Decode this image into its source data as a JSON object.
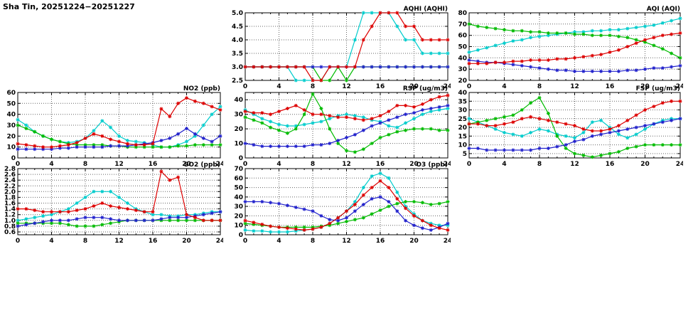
{
  "page": {
    "title": "Sha Tin, 20251224−20251227"
  },
  "x_axis": {
    "min": 0,
    "max": 24,
    "minor_step": 1,
    "major_ticks": [
      0,
      4,
      8,
      12,
      16,
      20,
      24
    ],
    "tick_labels": [
      "0",
      "4",
      "8",
      "12",
      "16",
      "20",
      "24"
    ]
  },
  "chart_data": [
    {
      "id": "aqhi",
      "type": "line",
      "title": "AQHI (AQHI)",
      "ylim": [
        2.5,
        5.0
      ],
      "yticks": [
        2.5,
        3.0,
        3.5,
        4.0,
        4.5,
        5.0
      ],
      "ydecimals": 1,
      "series": [
        {
          "name": "cyan",
          "color": "#00cccc",
          "values": [
            3,
            3,
            3,
            3,
            3,
            3,
            2.5,
            2.5,
            2.5,
            2.5,
            3,
            3,
            3,
            4,
            5,
            5,
            5,
            5,
            4.5,
            4,
            4,
            3.5,
            3.5,
            3.5,
            3.5
          ]
        },
        {
          "name": "green",
          "color": "#00bb00",
          "values": [
            3,
            3,
            3,
            3,
            3,
            3,
            3,
            3,
            3,
            2.5,
            2.5,
            3,
            2.5,
            3,
            3,
            3,
            3,
            3,
            3,
            3,
            3,
            3,
            3,
            3,
            3
          ]
        },
        {
          "name": "blue",
          "color": "#2222cc",
          "values": [
            3,
            3,
            3,
            3,
            3,
            3,
            3,
            3,
            3,
            3,
            3,
            3,
            3,
            3,
            3,
            3,
            3,
            3,
            3,
            3,
            3,
            3,
            3,
            3,
            3
          ]
        },
        {
          "name": "red",
          "color": "#dd0000",
          "values": [
            3,
            3,
            3,
            3,
            3,
            3,
            3,
            3,
            2.5,
            2.5,
            3,
            3,
            3,
            3,
            4,
            4.5,
            5,
            5,
            5,
            4.5,
            4.5,
            4,
            4,
            4,
            4
          ]
        }
      ]
    },
    {
      "id": "aqi",
      "type": "line",
      "title": "AQI (AQI)",
      "ylim": [
        20,
        80
      ],
      "yticks": [
        20,
        30,
        40,
        50,
        60,
        70,
        80
      ],
      "ydecimals": 0,
      "series": [
        {
          "name": "cyan",
          "color": "#00cccc",
          "values": [
            45,
            47,
            49,
            51,
            53,
            55,
            56,
            58,
            59,
            60,
            61,
            62,
            63,
            63,
            64,
            64,
            65,
            65,
            66,
            67,
            68,
            69,
            71,
            73,
            75
          ]
        },
        {
          "name": "green",
          "color": "#00bb00",
          "values": [
            70,
            68,
            67,
            66,
            65,
            64,
            64,
            63,
            63,
            62,
            62,
            62,
            61,
            61,
            60,
            60,
            60,
            59,
            58,
            56,
            54,
            51,
            48,
            44,
            40
          ]
        },
        {
          "name": "blue",
          "color": "#2222cc",
          "values": [
            38,
            37,
            36,
            36,
            35,
            34,
            33,
            32,
            31,
            30,
            29,
            29,
            28,
            28,
            28,
            28,
            28,
            28,
            29,
            29,
            30,
            31,
            31,
            32,
            33
          ]
        },
        {
          "name": "red",
          "color": "#dd0000",
          "values": [
            35,
            35,
            35,
            36,
            36,
            37,
            37,
            38,
            38,
            38,
            39,
            39,
            40,
            41,
            42,
            43,
            45,
            47,
            50,
            53,
            56,
            58,
            60,
            61,
            62
          ]
        }
      ]
    },
    {
      "id": "no2",
      "type": "line",
      "title": "NO2 (ppb)",
      "ylim": [
        0,
        60
      ],
      "yticks": [
        0,
        10,
        20,
        30,
        40,
        50,
        60
      ],
      "ydecimals": 0,
      "series": [
        {
          "name": "cyan",
          "color": "#00cccc",
          "values": [
            35,
            30,
            24,
            20,
            17,
            15,
            14,
            15,
            18,
            25,
            34,
            28,
            20,
            16,
            15,
            14,
            12,
            10,
            10,
            12,
            15,
            20,
            30,
            40,
            47
          ]
        },
        {
          "name": "green",
          "color": "#00bb00",
          "values": [
            30,
            27,
            24,
            20,
            17,
            15,
            13,
            12,
            12,
            12,
            12,
            11,
            11,
            10,
            10,
            10,
            10,
            10,
            10,
            11,
            11,
            12,
            12,
            12,
            12
          ]
        },
        {
          "name": "blue",
          "color": "#2222cc",
          "values": [
            8,
            8,
            8,
            8,
            8,
            9,
            9,
            10,
            10,
            10,
            10,
            11,
            11,
            11,
            12,
            13,
            14,
            16,
            18,
            22,
            27,
            22,
            18,
            15,
            20
          ]
        },
        {
          "name": "red",
          "color": "#dd0000",
          "values": [
            13,
            12,
            11,
            10,
            10,
            11,
            12,
            14,
            18,
            22,
            20,
            17,
            15,
            13,
            12,
            12,
            13,
            45,
            38,
            50,
            55,
            52,
            50,
            47,
            44
          ]
        }
      ]
    },
    {
      "id": "rsp",
      "type": "line",
      "title": "RSP (ug/m3)",
      "ylim": [
        0,
        45
      ],
      "yticks": [
        0,
        10,
        20,
        30,
        40
      ],
      "ydecimals": 0,
      "series": [
        {
          "name": "cyan",
          "color": "#00cccc",
          "values": [
            33,
            30,
            27,
            25,
            23,
            22,
            22,
            23,
            24,
            25,
            27,
            29,
            30,
            29,
            28,
            26,
            25,
            22,
            21,
            24,
            27,
            30,
            32,
            33,
            34
          ]
        },
        {
          "name": "green",
          "color": "#00bb00",
          "values": [
            28,
            26,
            24,
            21,
            19,
            17,
            20,
            30,
            44,
            34,
            20,
            10,
            5,
            4,
            6,
            10,
            14,
            16,
            18,
            19,
            20,
            20,
            20,
            19,
            19
          ]
        },
        {
          "name": "blue",
          "color": "#2222cc",
          "values": [
            10,
            9,
            8,
            8,
            8,
            8,
            8,
            8,
            9,
            9,
            10,
            12,
            14,
            16,
            19,
            22,
            24,
            26,
            28,
            30,
            31,
            33,
            34,
            35,
            36
          ]
        },
        {
          "name": "red",
          "color": "#dd0000",
          "values": [
            32,
            31,
            31,
            30,
            32,
            34,
            36,
            33,
            30,
            30,
            29,
            28,
            28,
            27,
            26,
            27,
            29,
            32,
            36,
            36,
            35,
            37,
            40,
            42,
            43
          ]
        }
      ]
    },
    {
      "id": "fsp",
      "type": "line",
      "title": "FSP (ug/m3)",
      "ylim": [
        2.5,
        40
      ],
      "yticks": [
        5,
        10,
        15,
        20,
        25,
        30,
        35,
        40
      ],
      "ydecimals": 0,
      "series": [
        {
          "name": "cyan",
          "color": "#00cccc",
          "values": [
            25,
            23,
            21,
            19,
            17,
            16,
            15,
            17,
            19,
            18,
            16,
            15,
            14,
            17,
            23,
            24,
            20,
            16,
            14,
            16,
            19,
            22,
            24,
            25,
            25
          ]
        },
        {
          "name": "green",
          "color": "#00bb00",
          "values": [
            22,
            23,
            24,
            25,
            26,
            27,
            30,
            34,
            37,
            28,
            15,
            8,
            5,
            4,
            3,
            4,
            5,
            6,
            8,
            9,
            10,
            10,
            10,
            10,
            10
          ]
        },
        {
          "name": "blue",
          "color": "#2222cc",
          "values": [
            8,
            8,
            7,
            7,
            7,
            7,
            7,
            7,
            8,
            8,
            9,
            10,
            12,
            13,
            15,
            16,
            17,
            18,
            19,
            20,
            21,
            22,
            23,
            24,
            25
          ]
        },
        {
          "name": "red",
          "color": "#dd0000",
          "values": [
            22,
            22,
            21,
            21,
            22,
            23,
            25,
            26,
            25,
            24,
            23,
            22,
            21,
            19,
            18,
            18,
            19,
            21,
            24,
            27,
            30,
            32,
            34,
            35,
            35
          ]
        }
      ]
    },
    {
      "id": "so2",
      "type": "line",
      "title": "SO2 (ppb)",
      "ylim": [
        0.5,
        2.8
      ],
      "yticks": [
        0.6,
        0.8,
        1.0,
        1.2,
        1.4,
        1.6,
        1.8,
        2.0,
        2.2,
        2.4,
        2.6,
        2.8
      ],
      "ydecimals": 1,
      "series": [
        {
          "name": "cyan",
          "color": "#00cccc",
          "values": [
            1.0,
            1.05,
            1.1,
            1.15,
            1.2,
            1.3,
            1.4,
            1.6,
            1.8,
            2.0,
            2.0,
            2.0,
            1.8,
            1.6,
            1.4,
            1.3,
            1.2,
            1.2,
            1.15,
            1.15,
            1.2,
            1.2,
            1.25,
            1.3,
            1.3
          ]
        },
        {
          "name": "green",
          "color": "#00bb00",
          "values": [
            0.9,
            0.9,
            0.9,
            0.9,
            0.9,
            0.9,
            0.85,
            0.8,
            0.8,
            0.8,
            0.85,
            0.9,
            0.95,
            1.0,
            1.0,
            1.0,
            1.0,
            1.0,
            1.0,
            1.0,
            1.0,
            1.0,
            1.0,
            1.0,
            1.0
          ]
        },
        {
          "name": "blue",
          "color": "#2222cc",
          "values": [
            0.8,
            0.85,
            0.9,
            0.95,
            1.0,
            1.0,
            1.0,
            1.05,
            1.1,
            1.1,
            1.1,
            1.05,
            1.0,
            1.0,
            1.0,
            1.0,
            1.0,
            1.05,
            1.1,
            1.1,
            1.1,
            1.15,
            1.2,
            1.25,
            1.3
          ]
        },
        {
          "name": "red",
          "color": "#dd0000",
          "values": [
            1.4,
            1.4,
            1.35,
            1.3,
            1.3,
            1.3,
            1.3,
            1.35,
            1.4,
            1.5,
            1.6,
            1.5,
            1.45,
            1.4,
            1.35,
            1.3,
            1.3,
            2.7,
            2.4,
            2.5,
            1.2,
            1.1,
            1.0,
            1.0,
            1.0
          ]
        }
      ]
    },
    {
      "id": "o3",
      "type": "line",
      "title": "O3 (ppb)",
      "ylim": [
        0,
        70
      ],
      "yticks": [
        0,
        10,
        20,
        30,
        40,
        50,
        60,
        70
      ],
      "ydecimals": 0,
      "series": [
        {
          "name": "cyan",
          "color": "#00cccc",
          "values": [
            5,
            4,
            4,
            3,
            3,
            3,
            4,
            5,
            6,
            8,
            12,
            18,
            25,
            35,
            50,
            62,
            65,
            60,
            45,
            30,
            22,
            15,
            12,
            10,
            10
          ]
        },
        {
          "name": "green",
          "color": "#00bb00",
          "values": [
            12,
            11,
            10,
            9,
            8,
            8,
            8,
            8,
            8,
            9,
            10,
            12,
            14,
            16,
            18,
            22,
            26,
            30,
            33,
            35,
            35,
            34,
            32,
            33,
            35
          ]
        },
        {
          "name": "blue",
          "color": "#2222cc",
          "values": [
            35,
            35,
            35,
            34,
            33,
            31,
            29,
            27,
            25,
            20,
            16,
            15,
            18,
            25,
            32,
            38,
            40,
            35,
            25,
            15,
            10,
            7,
            5,
            8,
            12
          ]
        },
        {
          "name": "red",
          "color": "#dd0000",
          "values": [
            15,
            13,
            11,
            9,
            8,
            7,
            6,
            5,
            6,
            8,
            12,
            18,
            25,
            32,
            42,
            50,
            57,
            50,
            38,
            28,
            20,
            15,
            10,
            7,
            5
          ]
        }
      ]
    }
  ]
}
